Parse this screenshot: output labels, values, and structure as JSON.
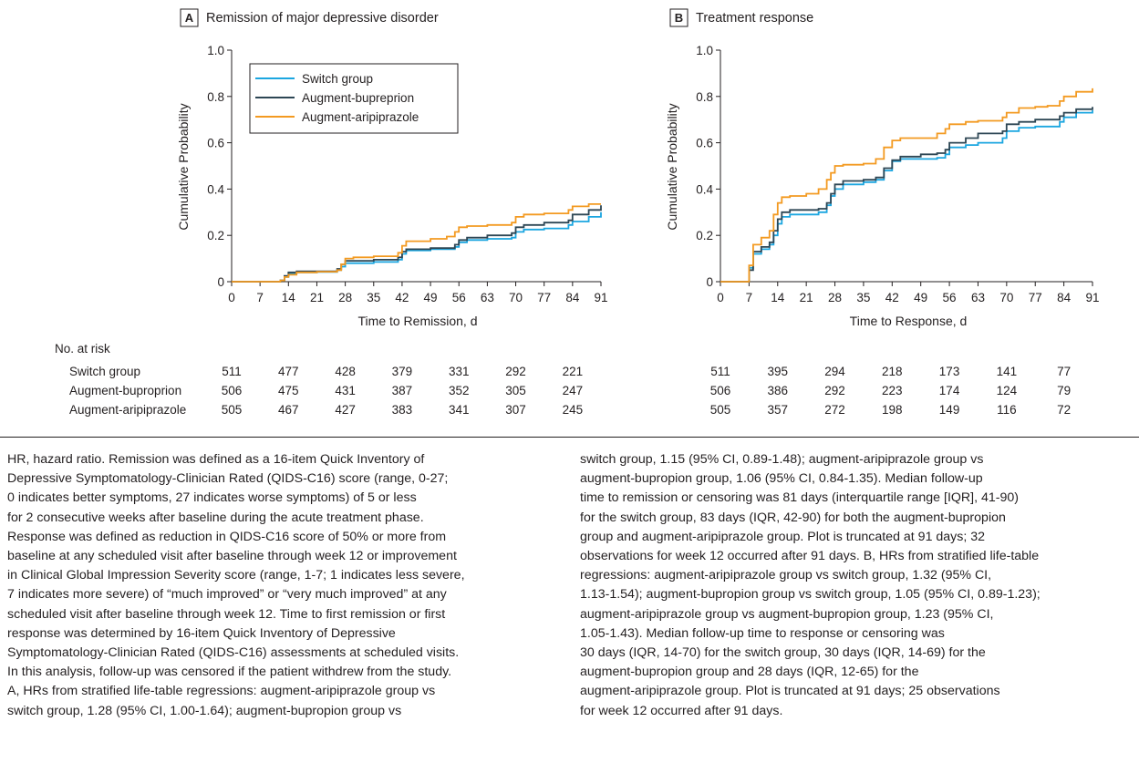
{
  "colors": {
    "switch": "#1ba6e0",
    "bupropion": "#2d4654",
    "aripiprazole": "#f39a21"
  },
  "chart_data": [
    {
      "panel": "A",
      "type": "line",
      "step": true,
      "title": "Remission of major depressive disorder",
      "xlabel": "Time to Remission, d",
      "ylabel": "Cumulative Probability",
      "xlim": [
        0,
        91
      ],
      "ylim": [
        0,
        1.0
      ],
      "xticks": [
        0,
        7,
        14,
        21,
        28,
        35,
        42,
        49,
        56,
        63,
        70,
        77,
        84,
        91
      ],
      "yticks": [
        0,
        0.2,
        0.4,
        0.6,
        0.8,
        1.0
      ],
      "ytick_labels": [
        "0",
        "0.2",
        "0.4",
        "0.6",
        "0.8",
        "1.0"
      ],
      "legend_position": "top-left",
      "series": [
        {
          "name": "Switch group",
          "color_key": "switch",
          "points": [
            [
              0,
              0
            ],
            [
              10,
              0
            ],
            [
              12,
              0.005
            ],
            [
              13,
              0.02
            ],
            [
              14,
              0.035
            ],
            [
              16,
              0.04
            ],
            [
              21,
              0.042
            ],
            [
              26,
              0.05
            ],
            [
              27,
              0.065
            ],
            [
              28,
              0.08
            ],
            [
              35,
              0.085
            ],
            [
              41,
              0.095
            ],
            [
              42,
              0.12
            ],
            [
              43,
              0.135
            ],
            [
              49,
              0.14
            ],
            [
              55,
              0.15
            ],
            [
              56,
              0.17
            ],
            [
              58,
              0.18
            ],
            [
              63,
              0.185
            ],
            [
              69,
              0.19
            ],
            [
              70,
              0.215
            ],
            [
              72,
              0.225
            ],
            [
              77,
              0.23
            ],
            [
              83,
              0.245
            ],
            [
              84,
              0.26
            ],
            [
              88,
              0.28
            ],
            [
              91,
              0.3
            ]
          ]
        },
        {
          "name": "Augment-bupreprion",
          "color_key": "bupropion",
          "points": [
            [
              0,
              0
            ],
            [
              10,
              0
            ],
            [
              12,
              0.005
            ],
            [
              13,
              0.025
            ],
            [
              14,
              0.04
            ],
            [
              16,
              0.045
            ],
            [
              21,
              0.045
            ],
            [
              26,
              0.055
            ],
            [
              27,
              0.075
            ],
            [
              28,
              0.09
            ],
            [
              35,
              0.095
            ],
            [
              41,
              0.105
            ],
            [
              42,
              0.13
            ],
            [
              43,
              0.14
            ],
            [
              49,
              0.145
            ],
            [
              55,
              0.16
            ],
            [
              56,
              0.18
            ],
            [
              58,
              0.19
            ],
            [
              63,
              0.2
            ],
            [
              69,
              0.21
            ],
            [
              70,
              0.235
            ],
            [
              72,
              0.245
            ],
            [
              77,
              0.255
            ],
            [
              83,
              0.265
            ],
            [
              84,
              0.29
            ],
            [
              88,
              0.31
            ],
            [
              91,
              0.33
            ]
          ]
        },
        {
          "name": "Augment-aripiprazole",
          "color_key": "aripiprazole",
          "points": [
            [
              0,
              0
            ],
            [
              10,
              0
            ],
            [
              12,
              0.005
            ],
            [
              13,
              0.02
            ],
            [
              14,
              0.03
            ],
            [
              16,
              0.04
            ],
            [
              21,
              0.043
            ],
            [
              26,
              0.05
            ],
            [
              27,
              0.075
            ],
            [
              28,
              0.1
            ],
            [
              30,
              0.105
            ],
            [
              35,
              0.11
            ],
            [
              41,
              0.125
            ],
            [
              42,
              0.155
            ],
            [
              43,
              0.175
            ],
            [
              49,
              0.185
            ],
            [
              53,
              0.195
            ],
            [
              55,
              0.215
            ],
            [
              56,
              0.235
            ],
            [
              58,
              0.24
            ],
            [
              63,
              0.245
            ],
            [
              69,
              0.255
            ],
            [
              70,
              0.28
            ],
            [
              72,
              0.29
            ],
            [
              77,
              0.295
            ],
            [
              83,
              0.31
            ],
            [
              84,
              0.325
            ],
            [
              88,
              0.335
            ],
            [
              91,
              0.335
            ]
          ]
        }
      ],
      "risk_table": {
        "times": [
          0,
          14,
          28,
          42,
          56,
          70,
          84
        ],
        "rows": [
          {
            "label": "Switch group",
            "values": [
              "511",
              "477",
              "428",
              "379",
              "331",
              "292",
              "221"
            ]
          },
          {
            "label": "Augment-buproprion",
            "values": [
              "506",
              "475",
              "431",
              "387",
              "352",
              "305",
              "247"
            ]
          },
          {
            "label": "Augment-aripiprazole",
            "values": [
              "505",
              "467",
              "427",
              "383",
              "341",
              "307",
              "245"
            ]
          }
        ]
      }
    },
    {
      "panel": "B",
      "type": "line",
      "step": true,
      "title": "Treatment response",
      "xlabel": "Time to Response, d",
      "ylabel": "Cumulative Probability",
      "xlim": [
        0,
        91
      ],
      "ylim": [
        0,
        1.0
      ],
      "xticks": [
        0,
        7,
        14,
        21,
        28,
        35,
        42,
        49,
        56,
        63,
        70,
        77,
        84,
        91
      ],
      "yticks": [
        0,
        0.2,
        0.4,
        0.6,
        0.8,
        1.0
      ],
      "ytick_labels": [
        "0",
        "0.2",
        "0.4",
        "0.6",
        "0.8",
        "1.0"
      ],
      "series": [
        {
          "name": "Switch group",
          "color_key": "switch",
          "points": [
            [
              0,
              0
            ],
            [
              6,
              0
            ],
            [
              7,
              0.06
            ],
            [
              8,
              0.12
            ],
            [
              10,
              0.14
            ],
            [
              12,
              0.16
            ],
            [
              13,
              0.2
            ],
            [
              14,
              0.25
            ],
            [
              15,
              0.28
            ],
            [
              17,
              0.29
            ],
            [
              21,
              0.29
            ],
            [
              24,
              0.3
            ],
            [
              26,
              0.33
            ],
            [
              27,
              0.37
            ],
            [
              28,
              0.4
            ],
            [
              30,
              0.42
            ],
            [
              35,
              0.43
            ],
            [
              38,
              0.44
            ],
            [
              40,
              0.48
            ],
            [
              42,
              0.52
            ],
            [
              44,
              0.53
            ],
            [
              49,
              0.53
            ],
            [
              53,
              0.535
            ],
            [
              55,
              0.55
            ],
            [
              56,
              0.58
            ],
            [
              60,
              0.59
            ],
            [
              63,
              0.6
            ],
            [
              69,
              0.62
            ],
            [
              70,
              0.65
            ],
            [
              73,
              0.665
            ],
            [
              77,
              0.67
            ],
            [
              80,
              0.67
            ],
            [
              83,
              0.69
            ],
            [
              84,
              0.71
            ],
            [
              87,
              0.73
            ],
            [
              91,
              0.74
            ]
          ]
        },
        {
          "name": "Augment-bupreprion",
          "color_key": "bupropion",
          "points": [
            [
              0,
              0
            ],
            [
              6,
              0
            ],
            [
              7,
              0.05
            ],
            [
              8,
              0.13
            ],
            [
              10,
              0.15
            ],
            [
              12,
              0.17
            ],
            [
              13,
              0.22
            ],
            [
              14,
              0.27
            ],
            [
              15,
              0.3
            ],
            [
              17,
              0.31
            ],
            [
              21,
              0.31
            ],
            [
              24,
              0.315
            ],
            [
              26,
              0.34
            ],
            [
              27,
              0.38
            ],
            [
              28,
              0.42
            ],
            [
              30,
              0.435
            ],
            [
              35,
              0.44
            ],
            [
              38,
              0.45
            ],
            [
              40,
              0.49
            ],
            [
              42,
              0.525
            ],
            [
              44,
              0.54
            ],
            [
              49,
              0.55
            ],
            [
              53,
              0.555
            ],
            [
              55,
              0.57
            ],
            [
              56,
              0.6
            ],
            [
              60,
              0.62
            ],
            [
              63,
              0.64
            ],
            [
              69,
              0.65
            ],
            [
              70,
              0.68
            ],
            [
              73,
              0.69
            ],
            [
              77,
              0.7
            ],
            [
              80,
              0.7
            ],
            [
              83,
              0.715
            ],
            [
              84,
              0.73
            ],
            [
              87,
              0.745
            ],
            [
              91,
              0.755
            ]
          ]
        },
        {
          "name": "Augment-aripiprazole",
          "color_key": "aripiprazole",
          "points": [
            [
              0,
              0
            ],
            [
              6,
              0
            ],
            [
              7,
              0.07
            ],
            [
              8,
              0.16
            ],
            [
              10,
              0.19
            ],
            [
              12,
              0.22
            ],
            [
              13,
              0.29
            ],
            [
              14,
              0.34
            ],
            [
              15,
              0.365
            ],
            [
              17,
              0.37
            ],
            [
              21,
              0.38
            ],
            [
              24,
              0.4
            ],
            [
              26,
              0.44
            ],
            [
              27,
              0.47
            ],
            [
              28,
              0.5
            ],
            [
              30,
              0.505
            ],
            [
              35,
              0.51
            ],
            [
              38,
              0.53
            ],
            [
              40,
              0.58
            ],
            [
              42,
              0.61
            ],
            [
              44,
              0.62
            ],
            [
              49,
              0.62
            ],
            [
              53,
              0.64
            ],
            [
              55,
              0.66
            ],
            [
              56,
              0.68
            ],
            [
              60,
              0.69
            ],
            [
              63,
              0.695
            ],
            [
              69,
              0.71
            ],
            [
              70,
              0.73
            ],
            [
              73,
              0.75
            ],
            [
              77,
              0.755
            ],
            [
              80,
              0.76
            ],
            [
              83,
              0.78
            ],
            [
              84,
              0.8
            ],
            [
              87,
              0.82
            ],
            [
              91,
              0.835
            ]
          ]
        }
      ],
      "risk_table": {
        "times": [
          0,
          14,
          28,
          42,
          56,
          70,
          84
        ],
        "rows": [
          {
            "label": "Switch group",
            "values": [
              "511",
              "395",
              "294",
              "218",
              "173",
              "141",
              "77"
            ]
          },
          {
            "label": "Augment-buproprion",
            "values": [
              "506",
              "386",
              "292",
              "223",
              "174",
              "124",
              "79"
            ]
          },
          {
            "label": "Augment-aripiprazole",
            "values": [
              "505",
              "357",
              "272",
              "198",
              "149",
              "116",
              "72"
            ]
          }
        ]
      }
    }
  ],
  "risk_table_title": "No. at risk",
  "caption": {
    "left": "HR, hazard ratio. Remission was defined as a 16-item Quick Inventory of\nDepressive Symptomatology-Clinician Rated (QIDS-C16) score (range, 0-27;\n0 indicates better symptoms, 27 indicates worse symptoms) of 5 or less\nfor 2 consecutive weeks after baseline during the acute treatment phase.\nResponse was defined as reduction in QIDS-C16 score of 50% or more from\nbaseline at any scheduled visit after baseline through week 12 or improvement\nin Clinical Global Impression Severity score (range, 1-7; 1 indicates less severe,\n7 indicates more severe) of “much improved” or “very much improved” at any\nscheduled visit after baseline through week 12. Time to first remission or first\nresponse was determined by 16-item Quick Inventory of Depressive\nSymptomatology-Clinician Rated (QIDS-C16) assessments at scheduled visits.\nIn this analysis, follow-up was censored if the patient withdrew from the study.\nA, HRs from stratified life-table regressions: augment-aripiprazole group vs\nswitch group, 1.28 (95% CI, 1.00-1.64); augment-bupropion group vs",
    "right": "switch group, 1.15 (95% CI, 0.89-1.48); augment-aripiprazole group vs\naugment-bupropion group, 1.06 (95% CI, 0.84-1.35). Median follow-up\ntime to remission or censoring was 81 days (interquartile range [IQR], 41-90)\nfor the switch group, 83 days (IQR, 42-90) for both the augment-bupropion\ngroup and augment-aripiprazole group. Plot is truncated at 91 days; 32\nobservations for week 12 occurred after 91 days. B, HRs from stratified life-table\nregressions: augment-aripiprazole group vs switch group, 1.32 (95% CI,\n1.13-1.54); augment-bupropion group vs switch group, 1.05 (95% CI, 0.89-1.23);\naugment-aripiprazole group vs augment-bupropion group, 1.23 (95% CI,\n1.05-1.43). Median follow-up time to response or censoring was\n30 days (IQR, 14-70) for the switch group, 30 days (IQR, 14-69) for the\naugment-bupropion group and 28 days (IQR, 12-65) for the\naugment-aripiprazole group. Plot is truncated at 91 days; 25 observations\nfor week 12 occurred after 91 days."
  }
}
